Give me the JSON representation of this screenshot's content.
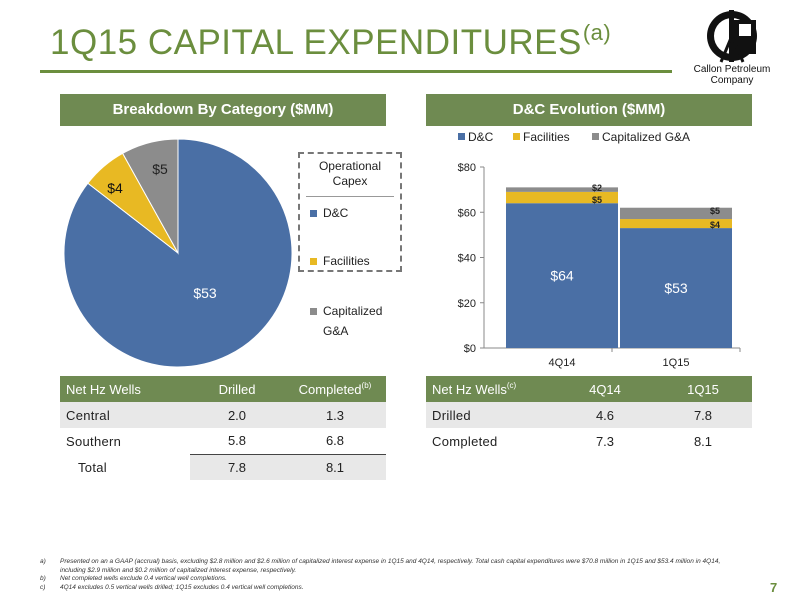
{
  "header": {
    "title": "1Q15 CAPITAL EXPENDITURES",
    "title_note": "(a)",
    "logo_text_line1": "Callon Petroleum",
    "logo_text_line2": "Company",
    "page_number": "7"
  },
  "colors": {
    "accent": "#6b8e3e",
    "band": "#6f8a52",
    "dc": "#4a6fa5",
    "facilities": "#e8b923",
    "ga": "#8c8c8c"
  },
  "pie_panel": {
    "heading": "Breakdown By Category ($MM)",
    "legend_title_line1": "Operational",
    "legend_title_line2": "Capex",
    "legend_items": [
      {
        "label": "D&C",
        "color": "#4a6fa5"
      },
      {
        "label": "Facilities",
        "color": "#e8b923"
      },
      {
        "label": "Capitalized",
        "label2": "G&A",
        "color": "#8c8c8c"
      }
    ]
  },
  "bar_panel": {
    "heading": "D&C Evolution ($MM)",
    "legend_items": [
      "D&C",
      "Facilities",
      "Capitalized G&A"
    ]
  },
  "chart_data": [
    {
      "type": "pie",
      "title": "Breakdown By Category ($MM)",
      "slices": [
        {
          "label": "D&C",
          "value": 53,
          "display": "$53",
          "color": "#4a6fa5"
        },
        {
          "label": "Facilities",
          "value": 4,
          "display": "$4",
          "color": "#e8b923"
        },
        {
          "label": "Capitalized G&A",
          "value": 5,
          "display": "$5",
          "color": "#8c8c8c"
        }
      ]
    },
    {
      "type": "bar",
      "stacked": true,
      "title": "D&C Evolution ($MM)",
      "categories": [
        "4Q14",
        "1Q15"
      ],
      "series": [
        {
          "name": "D&C",
          "values": [
            64,
            53
          ],
          "labels": [
            "$64",
            "$53"
          ],
          "color": "#4a6fa5"
        },
        {
          "name": "Facilities",
          "values": [
            5,
            4
          ],
          "labels": [
            "$5",
            "$4"
          ],
          "color": "#e8b923"
        },
        {
          "name": "Capitalized G&A",
          "values": [
            2,
            5
          ],
          "labels": [
            "$2",
            "$5"
          ],
          "color": "#8c8c8c"
        }
      ],
      "ylim": [
        0,
        80
      ],
      "yticks": [
        0,
        20,
        40,
        60,
        80
      ],
      "ytick_labels": [
        "$0",
        "$20",
        "$40",
        "$60",
        "$80"
      ],
      "legend": "top",
      "grid": false
    }
  ],
  "left_table": {
    "headers": [
      "Net Hz Wells",
      "Drilled",
      "Completed"
    ],
    "header_note": "(b)",
    "rows": [
      {
        "label": "Central",
        "drilled": "2.0",
        "completed": "1.3"
      },
      {
        "label": "Southern",
        "drilled": "5.8",
        "completed": "6.8"
      },
      {
        "label": "Total",
        "drilled": "7.8",
        "completed": "8.1"
      }
    ]
  },
  "right_table": {
    "headers": [
      "Net Hz Wells",
      "4Q14",
      "1Q15"
    ],
    "header_note": "(c)",
    "rows": [
      {
        "label": "Drilled",
        "q4": "4.6",
        "q1": "7.8"
      },
      {
        "label": "Completed",
        "q4": "7.3",
        "q1": "8.1"
      }
    ]
  },
  "footnotes": [
    {
      "key": "a)",
      "text": "Presented on an a GAAP (accrual) basis, excluding $2.8 million and $2.6 million of capitalized interest expense in 1Q15 and 4Q14, respectively. Total cash capital expenditures were $70.8 million in 1Q15 and $53.4 million in 4Q14, including $2.9 million and $0.2 million of capitalized interest expense, respectively."
    },
    {
      "key": "b)",
      "text": "Net completed wells exclude 0.4 vertical well completions."
    },
    {
      "key": "c)",
      "text": "4Q14 excludes 0.5 vertical wells drilled; 1Q15 excludes 0.4 vertical well completions."
    }
  ]
}
